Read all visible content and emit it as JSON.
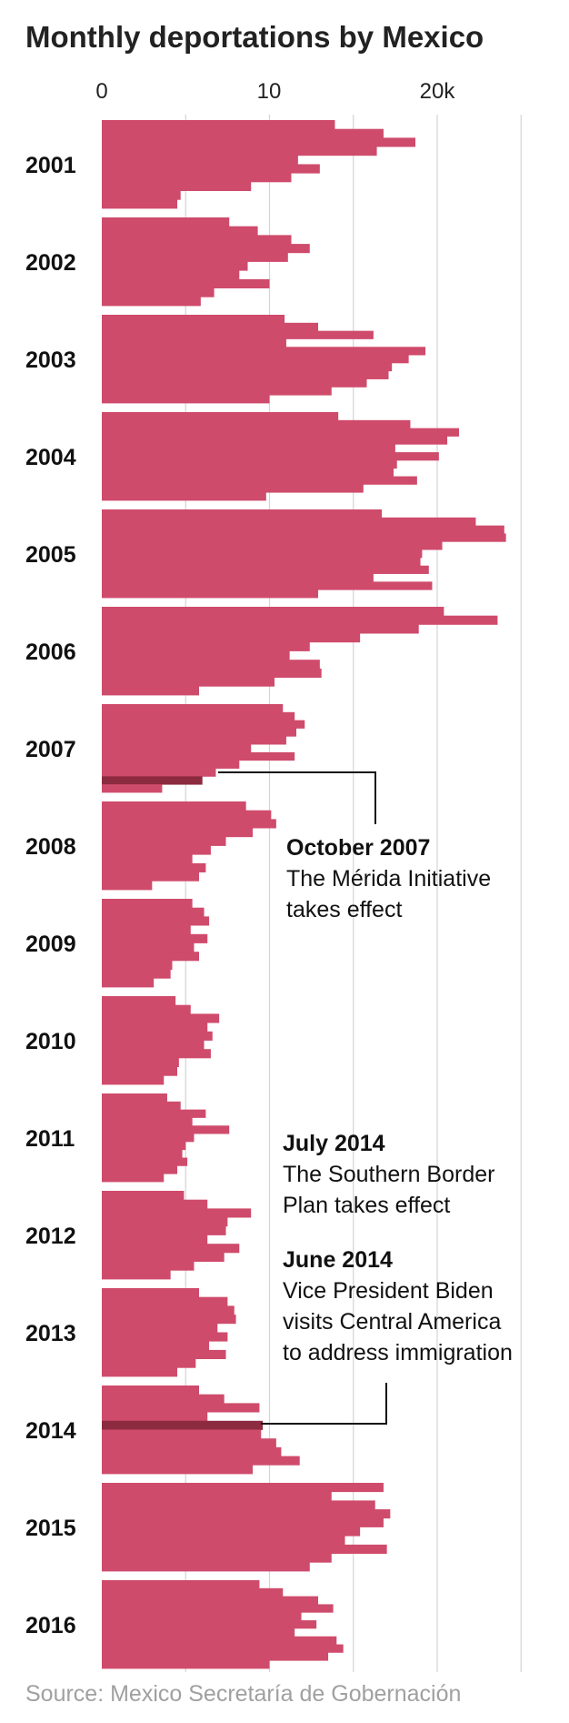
{
  "chart_data": {
    "type": "bar",
    "orientation": "horizontal",
    "title": "Monthly deportations by Mexico",
    "x_tick_labels": [
      "0",
      "10",
      "20k"
    ],
    "xlim": [
      0,
      25000
    ],
    "grid": true,
    "colors": {
      "bar": "#cf4b6b",
      "highlight": "#8c2b3f"
    },
    "years": [
      {
        "year": "2001",
        "values": [
          13900,
          16800,
          18700,
          16400,
          11700,
          13000,
          11300,
          8900,
          4700,
          4500
        ]
      },
      {
        "year": "2002",
        "values": [
          7600,
          9300,
          11300,
          12400,
          11100,
          8700,
          8200,
          10000,
          6700,
          5900
        ]
      },
      {
        "year": "2003",
        "values": [
          10900,
          12900,
          16200,
          11000,
          19300,
          18300,
          17300,
          17100,
          15800,
          13700,
          10000
        ]
      },
      {
        "year": "2004",
        "values": [
          14100,
          18400,
          21300,
          20600,
          17500,
          20100,
          17600,
          17400,
          18800,
          15600,
          9800
        ]
      },
      {
        "year": "2005",
        "values": [
          16700,
          22300,
          24000,
          24100,
          20300,
          19100,
          19000,
          19500,
          16200,
          19700,
          12900
        ]
      },
      {
        "year": "2006",
        "values": [
          20400,
          23600,
          18900,
          15400,
          12400,
          11200,
          13000,
          13100,
          10300,
          5800
        ]
      },
      {
        "year": "2007",
        "values": [
          10800,
          11500,
          12100,
          11600,
          11000,
          8900,
          11500,
          8200,
          6800,
          6000,
          3600
        ]
      },
      {
        "year": "2008",
        "values": [
          8600,
          10100,
          10400,
          9000,
          7400,
          6500,
          5400,
          6200,
          5800,
          3000
        ]
      },
      {
        "year": "2009",
        "values": [
          5400,
          6100,
          6400,
          5300,
          6300,
          5500,
          5800,
          4200,
          4100,
          3100
        ]
      },
      {
        "year": "2010",
        "values": [
          4400,
          5300,
          7000,
          6300,
          6600,
          6100,
          6500,
          4600,
          4500,
          3700
        ]
      },
      {
        "year": "2011",
        "values": [
          3900,
          4700,
          6200,
          5400,
          7600,
          5500,
          5000,
          4800,
          5100,
          4500,
          3700
        ]
      },
      {
        "year": "2012",
        "values": [
          4900,
          6300,
          8900,
          7500,
          7400,
          6300,
          8200,
          7300,
          5500,
          4100
        ]
      },
      {
        "year": "2013",
        "values": [
          5800,
          7500,
          7900,
          8000,
          6900,
          7500,
          6400,
          7400,
          5600,
          4500
        ]
      },
      {
        "year": "2014",
        "values": [
          5800,
          7300,
          9400,
          6300,
          9600,
          9500,
          10400,
          10700,
          11800,
          9000
        ]
      },
      {
        "year": "2015",
        "values": [
          16800,
          13700,
          16300,
          17200,
          16800,
          15400,
          14500,
          17000,
          13700,
          12400
        ]
      },
      {
        "year": "2016",
        "values": [
          9400,
          10800,
          12900,
          13800,
          11900,
          12800,
          11500,
          14000,
          14400,
          13500,
          10000
        ]
      }
    ],
    "highlights": [
      {
        "year": "2007",
        "month_index": 9
      },
      {
        "year": "2014",
        "month_index": 4
      }
    ],
    "annotations": [
      {
        "head": "October 2007",
        "lines": [
          "The Mérida Initiative",
          "takes effect"
        ]
      },
      {
        "head": "July 2014",
        "lines": [
          "The Southern Border",
          "Plan takes effect"
        ]
      },
      {
        "head": "June 2014",
        "lines": [
          "Vice President Biden",
          "visits Central America",
          "to address immigration"
        ]
      }
    ],
    "source": "Source: Mexico Secretaría de Gobernación"
  }
}
